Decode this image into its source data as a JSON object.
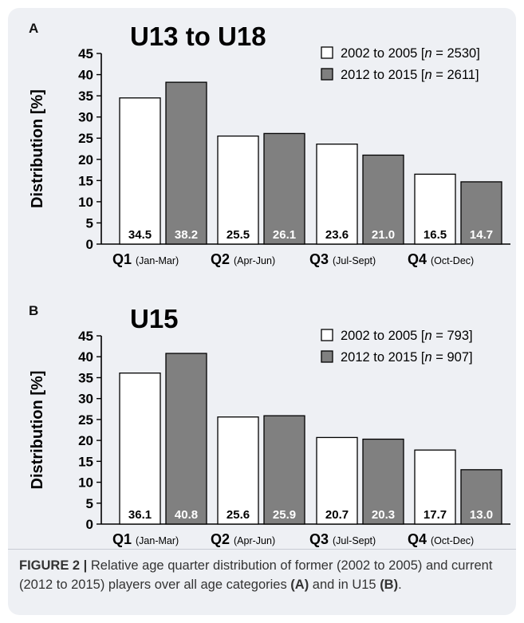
{
  "figure": {
    "caption_label": "FIGURE 2 |",
    "caption_text_1": " Relative age quarter distribution of former (2002 to 2005) and current (2012 to 2015) players over all age categories ",
    "caption_ref_a": "(A)",
    "caption_text_2": " and in U15 ",
    "caption_ref_b": "(B)",
    "caption_text_3": "."
  },
  "colors": {
    "series_1": "#ffffff",
    "series_2": "#808080",
    "panel_background": "#eef0f4"
  },
  "chart_data": [
    {
      "panel": "A",
      "type": "bar",
      "title": "U13 to U18",
      "ylabel": "Distribution [%]",
      "xlabel": "",
      "ylim": [
        0,
        45
      ],
      "yticks": [
        0,
        5,
        10,
        15,
        20,
        25,
        30,
        35,
        40,
        45
      ],
      "grid": false,
      "legend_position": "top-right",
      "categories": [
        {
          "main": "Q1",
          "sub": "(Jan-Mar)"
        },
        {
          "main": "Q2",
          "sub": "(Apr-Jun)"
        },
        {
          "main": "Q3",
          "sub": "(Jul-Sept)"
        },
        {
          "main": "Q4",
          "sub": "(Oct-Dec)"
        }
      ],
      "series": [
        {
          "name": "2002 to 2005 [n = 2530]",
          "name_prefix": "2002 to 2005 [",
          "name_n": "n",
          "name_suffix": " = 2530]",
          "values": [
            34.5,
            25.5,
            23.6,
            16.5
          ]
        },
        {
          "name": "2012 to 2015 [n = 2611]",
          "name_prefix": "2012 to 2015 [",
          "name_n": "n",
          "name_suffix": " = 2611]",
          "values": [
            38.2,
            26.1,
            21.0,
            14.7
          ]
        }
      ],
      "data_labels": [
        [
          "34.5",
          "25.5",
          "23.6",
          "16.5"
        ],
        [
          "38.2",
          "26.1",
          "21.0",
          "14.7"
        ]
      ]
    },
    {
      "panel": "B",
      "type": "bar",
      "title": "U15",
      "ylabel": "Distribution [%]",
      "xlabel": "",
      "ylim": [
        0,
        45
      ],
      "yticks": [
        0,
        5,
        10,
        15,
        20,
        25,
        30,
        35,
        40,
        45
      ],
      "grid": false,
      "legend_position": "top-right",
      "categories": [
        {
          "main": "Q1",
          "sub": "(Jan-Mar)"
        },
        {
          "main": "Q2",
          "sub": "(Apr-Jun)"
        },
        {
          "main": "Q3",
          "sub": "(Jul-Sept)"
        },
        {
          "main": "Q4",
          "sub": "(Oct-Dec)"
        }
      ],
      "series": [
        {
          "name": "2002 to 2005 [n = 793]",
          "name_prefix": "2002 to 2005 [",
          "name_n": "n",
          "name_suffix": " = 793]",
          "values": [
            36.1,
            25.6,
            20.7,
            17.7
          ]
        },
        {
          "name": "2012 to 2015 [n = 907]",
          "name_prefix": "2012 to 2015 [",
          "name_n": "n",
          "name_suffix": " = 907]",
          "values": [
            40.8,
            25.9,
            20.3,
            13.0
          ]
        }
      ],
      "data_labels": [
        [
          "36.1",
          "25.6",
          "20.7",
          "17.7"
        ],
        [
          "40.8",
          "25.9",
          "20.3",
          "13.0"
        ]
      ]
    }
  ]
}
